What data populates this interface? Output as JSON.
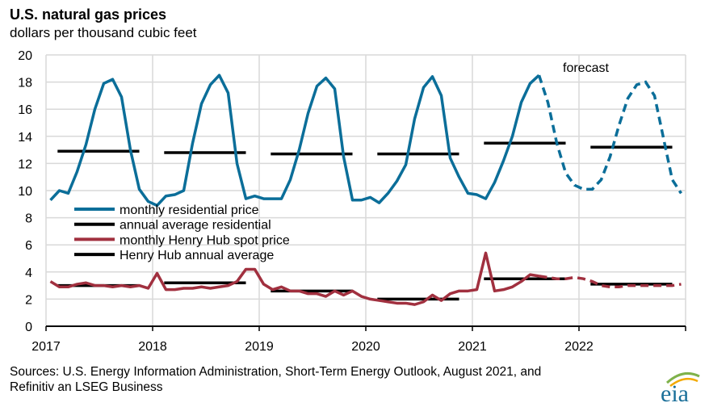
{
  "chart_data": {
    "type": "line",
    "title": "U.S. natural gas prices",
    "subtitle": "dollars per thousand cubic feet",
    "ylim": [
      0,
      20
    ],
    "yticks": [
      "0",
      "2",
      "4",
      "6",
      "8",
      "10",
      "12",
      "14",
      "16",
      "18",
      "20"
    ],
    "xlim": [
      "2017-01",
      "2022-12"
    ],
    "xticks": [
      "2017",
      "2018",
      "2019",
      "2020",
      "2021",
      "2022"
    ],
    "grid": true,
    "legend_placement": "center-left",
    "annotation": "forecast",
    "forecast_start": "2021-08",
    "months_start": "2017-01",
    "series": [
      {
        "name": "monthly residential price",
        "color": "#0b6e99",
        "style": "line",
        "values": [
          9.3,
          10.0,
          9.8,
          11.4,
          13.4,
          16.0,
          17.9,
          18.2,
          16.9,
          13.0,
          10.1,
          9.2,
          8.9,
          9.6,
          9.7,
          10.0,
          13.5,
          16.4,
          17.8,
          18.5,
          17.2,
          12.0,
          9.4,
          9.6,
          9.4,
          9.4,
          9.4,
          10.8,
          13.0,
          15.7,
          17.7,
          18.3,
          17.5,
          12.5,
          9.3,
          9.3,
          9.5,
          9.1,
          9.8,
          10.7,
          11.9,
          15.3,
          17.6,
          18.4,
          17.0,
          12.4,
          11.0,
          9.8,
          9.7,
          9.4,
          10.6,
          12.2,
          14.0,
          16.5,
          17.9,
          18.5,
          16.5,
          13.5,
          11.3,
          10.4,
          10.1,
          10.1,
          10.8,
          12.5,
          14.8,
          16.8,
          17.8,
          18.0,
          17.0,
          13.9,
          10.8,
          9.8
        ]
      },
      {
        "name": "annual average residential",
        "color": "#000000",
        "style": "annual",
        "values": [
          12.9,
          12.8,
          12.7,
          12.7,
          13.5,
          13.2
        ]
      },
      {
        "name": "monthly Henry Hub spot price",
        "color": "#a1303f",
        "style": "line",
        "values": [
          3.3,
          2.9,
          2.9,
          3.1,
          3.2,
          3.0,
          3.0,
          2.9,
          3.0,
          2.9,
          3.0,
          2.8,
          3.9,
          2.7,
          2.7,
          2.8,
          2.8,
          2.9,
          2.8,
          2.9,
          3.0,
          3.3,
          4.2,
          4.2,
          3.1,
          2.7,
          2.9,
          2.6,
          2.6,
          2.4,
          2.4,
          2.2,
          2.6,
          2.3,
          2.6,
          2.2,
          2.0,
          1.9,
          1.8,
          1.7,
          1.7,
          1.6,
          1.8,
          2.3,
          1.9,
          2.4,
          2.6,
          2.6,
          2.7,
          5.4,
          2.6,
          2.7,
          2.9,
          3.3,
          3.8,
          3.7,
          3.6,
          3.5,
          3.5,
          3.6,
          3.5,
          3.3,
          3.0,
          2.9,
          2.9,
          3.0,
          3.0,
          3.0,
          3.0,
          3.0,
          3.0,
          3.1
        ]
      },
      {
        "name": "Henry Hub annual average",
        "color": "#000000",
        "style": "annual",
        "values": [
          3.0,
          3.2,
          2.6,
          2.0,
          3.5,
          3.1
        ]
      }
    ],
    "source": [
      "Sources: U.S. Energy Information Administration, Short-Term Energy Outlook, August 2021, and",
      "Refinitiv an LSEG Business"
    ]
  },
  "logo": {
    "text": "eia",
    "color": "#1a6f99"
  }
}
